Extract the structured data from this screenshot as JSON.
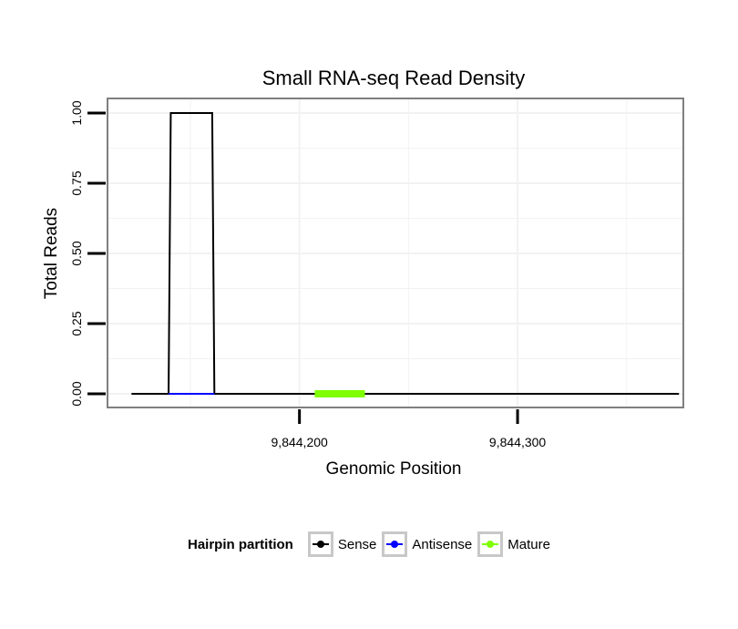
{
  "chart_data": {
    "type": "line",
    "title": "Small RNA-seq Read Density",
    "xlabel": "Genomic Position",
    "ylabel": "Total Reads",
    "xlim": [
      9844112,
      9844376
    ],
    "ylim": [
      0,
      1.05
    ],
    "x_ticks": [
      9844200,
      9844300
    ],
    "x_tick_labels": [
      "9,844,200",
      "9,844,300"
    ],
    "y_ticks": [
      0,
      0.25,
      0.5,
      0.75,
      1.0
    ],
    "y_tick_labels": [
      "0.00",
      "0.25",
      "0.50",
      "0.75",
      "1.00"
    ],
    "grid": true,
    "series": [
      {
        "name": "Sense",
        "color": "#000000",
        "x": [
          9844123,
          9844140,
          9844141,
          9844160,
          9844161,
          9844174,
          9844374
        ],
        "y": [
          0,
          0,
          1,
          1,
          0,
          0,
          0
        ]
      },
      {
        "name": "Antisense",
        "color": "#0000ff",
        "x": [
          9844140,
          9844161
        ],
        "y": [
          0,
          0
        ]
      },
      {
        "name": "Mature",
        "color": "#7fff00",
        "x": [
          9844207,
          9844230
        ],
        "y": [
          0,
          0
        ]
      }
    ],
    "legend": {
      "title": "Hairpin partition",
      "position": "bottom",
      "entries": [
        {
          "label": "Sense",
          "color": "#000000"
        },
        {
          "label": "Antisense",
          "color": "#0000ff"
        },
        {
          "label": "Mature",
          "color": "#7fff00"
        }
      ]
    }
  }
}
